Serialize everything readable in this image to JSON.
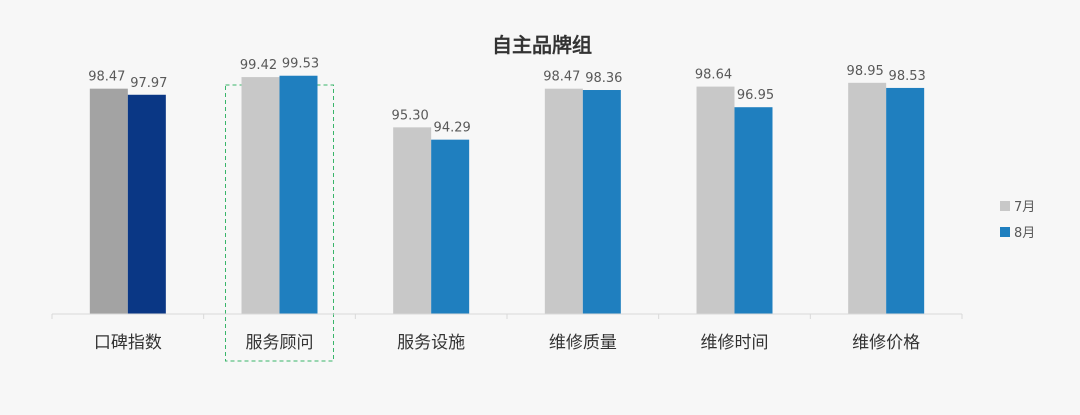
{
  "chart_data": {
    "type": "bar",
    "title": "自主品牌组",
    "categories": [
      "口碑指数",
      "服务顾问",
      "服务设施",
      "维修质量",
      "维修时间",
      "维修价格"
    ],
    "series": [
      {
        "name": "7月",
        "values": [
          98.47,
          99.42,
          95.3,
          98.47,
          98.64,
          98.95
        ],
        "value_labels": [
          "98.47",
          "99.42",
          "95.30",
          "98.47",
          "98.64",
          "98.95"
        ]
      },
      {
        "name": "8月",
        "values": [
          97.97,
          99.53,
          94.29,
          98.36,
          96.95,
          98.53
        ],
        "value_labels": [
          "97.97",
          "99.53",
          "94.29",
          "98.36",
          "96.95",
          "98.53"
        ]
      }
    ],
    "ylim": [
      80,
      100
    ],
    "xlabel": "",
    "ylabel": "",
    "grid": false,
    "legend_position": "right",
    "highlighted_category": "服务顾问",
    "colors": {
      "series_default": [
        "#c8c8c8",
        "#1f7fbf"
      ],
      "first_category": [
        "#a3a3a3",
        "#0a3785"
      ],
      "highlight_box": "#39b56a",
      "axis": "#d9d9d9"
    }
  }
}
